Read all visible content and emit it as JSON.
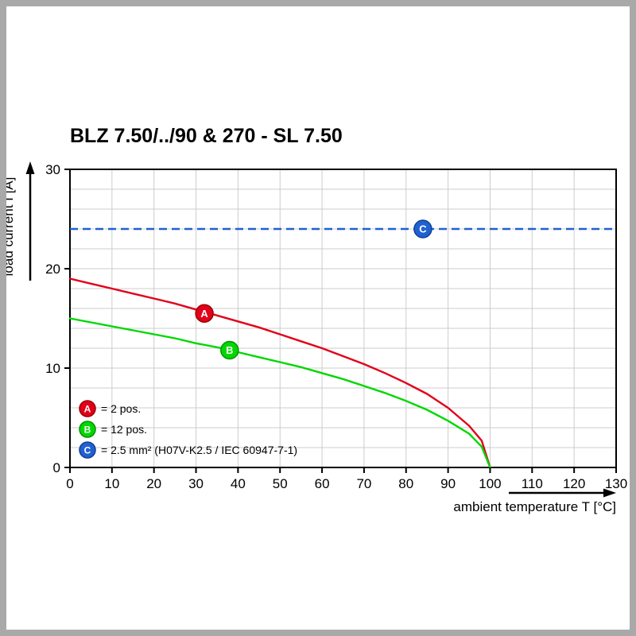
{
  "page": {
    "title": "BLZ 7.50/../90 & 270 - SL 7.50"
  },
  "chart_data": {
    "type": "line",
    "title": "BLZ 7.50/../90 & 270 - SL 7.50",
    "xlabel": "ambient temperature T [°C]",
    "ylabel": "load current I [A]",
    "xlim": [
      0,
      130
    ],
    "ylim": [
      0,
      30
    ],
    "x_ticks": [
      0,
      10,
      20,
      30,
      40,
      50,
      60,
      70,
      80,
      90,
      100,
      110,
      120,
      130
    ],
    "y_ticks": [
      0,
      10,
      20,
      30
    ],
    "grid": {
      "x_step": 10,
      "y_step": 2,
      "color": "#cccccc",
      "on": true
    },
    "legend_position": "inside-bottom-left",
    "series": [
      {
        "name": "A",
        "label": "= 2 pos.",
        "color": "#e2001a",
        "edge": "#990000",
        "style": "solid",
        "x": [
          0,
          5,
          10,
          15,
          20,
          25,
          30,
          35,
          40,
          45,
          50,
          55,
          60,
          65,
          70,
          75,
          80,
          85,
          90,
          95,
          98,
          100
        ],
        "y": [
          19,
          18.5,
          18,
          17.5,
          17,
          16.5,
          15.9,
          15.3,
          14.7,
          14.1,
          13.4,
          12.7,
          12,
          11.2,
          10.4,
          9.5,
          8.5,
          7.4,
          6.0,
          4.2,
          2.7,
          0
        ],
        "marker_at": [
          32,
          15.5
        ]
      },
      {
        "name": "B",
        "label": "= 12 pos.",
        "color": "#00d800",
        "edge": "#009100",
        "style": "solid",
        "x": [
          0,
          5,
          10,
          15,
          20,
          25,
          30,
          35,
          40,
          45,
          50,
          55,
          60,
          65,
          70,
          75,
          80,
          85,
          90,
          95,
          98,
          100
        ],
        "y": [
          15,
          14.6,
          14.2,
          13.8,
          13.4,
          13.0,
          12.5,
          12.1,
          11.6,
          11.1,
          10.6,
          10.1,
          9.5,
          8.9,
          8.2,
          7.5,
          6.7,
          5.8,
          4.7,
          3.4,
          2.1,
          0
        ],
        "marker_at": [
          38,
          11.8
        ]
      },
      {
        "name": "C",
        "label": "= 2.5 mm² (H07V-K2.5 / IEC 60947-7-1)",
        "color": "#2061d2",
        "edge": "#123f93",
        "style": "dashed",
        "y_const": 24,
        "marker_at": [
          84,
          24
        ]
      }
    ]
  }
}
